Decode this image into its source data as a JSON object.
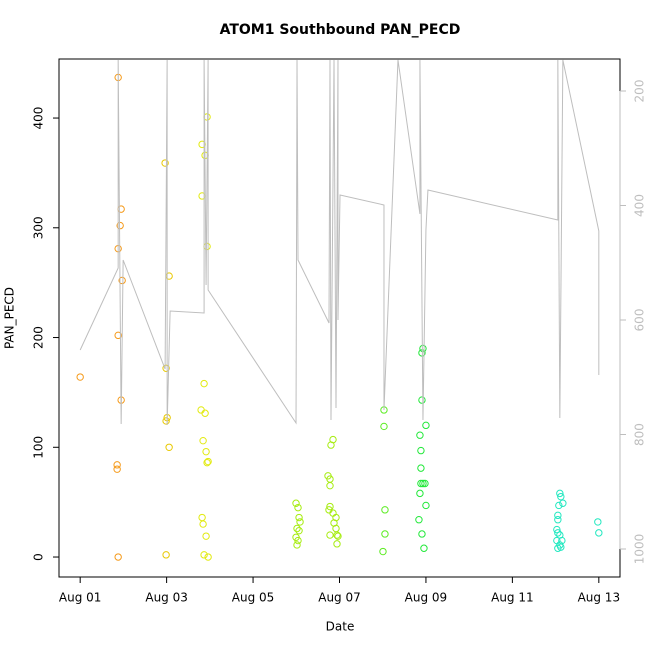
{
  "chart_data": {
    "type": "scatter",
    "title": "ATOM1 Southbound PAN_PECD",
    "xlabel": "Date",
    "ylabel": "PAN_PECD",
    "xlim": [
      -0.49,
      12.49
    ],
    "ylim": [
      -18.2,
      453.8
    ],
    "y2lim": [
      1048.9,
      144.1
    ],
    "xticks": [
      {
        "value": 0,
        "label": "Aug 01"
      },
      {
        "value": 2,
        "label": "Aug 03"
      },
      {
        "value": 4,
        "label": "Aug 05"
      },
      {
        "value": 6,
        "label": "Aug 07"
      },
      {
        "value": 8,
        "label": "Aug 09"
      },
      {
        "value": 10,
        "label": "Aug 11"
      },
      {
        "value": 12,
        "label": "Aug 13"
      }
    ],
    "yticks": [
      0,
      100,
      200,
      300,
      400
    ],
    "y2ticks": [
      200,
      400,
      600,
      800,
      1000
    ],
    "series": [
      {
        "color": "#f59a1a",
        "x": [
          0,
          0.879,
          0.948,
          0.925,
          0.879,
          0.971,
          0.879,
          0.948,
          0.855,
          0.855,
          0.879
        ],
        "values": [
          164,
          437,
          317,
          302,
          281,
          252,
          202,
          143,
          84,
          80,
          0
        ]
      },
      {
        "color": "#e8c800",
        "x": [
          1.965,
          2.058,
          1.988,
          2.012,
          1.988,
          2.058,
          1.988
        ],
        "values": [
          359,
          256,
          172,
          127,
          124,
          100,
          2
        ]
      },
      {
        "color": "#e2ea10",
        "x": [
          2.936,
          2.821,
          2.89,
          2.821,
          2.936,
          2.867,
          2.798,
          2.89,
          2.844,
          2.913,
          2.96,
          2.936,
          2.821,
          2.844,
          2.913,
          2.867,
          2.96
        ],
        "values": [
          401,
          376,
          366,
          329,
          283,
          158,
          134,
          131,
          106,
          96,
          87,
          86,
          36,
          30,
          19,
          2,
          0
        ]
      },
      {
        "color": "#a6ec10",
        "x": [
          4.994,
          5.04,
          5.064,
          5.087,
          5.017,
          5.064,
          4.994,
          5.04,
          5.017,
          5.734,
          5.78,
          5.85,
          5.803,
          5.78,
          5.78,
          5.757,
          5.85,
          5.919,
          5.873,
          5.919,
          5.78,
          5.942,
          5.965,
          5.942
        ],
        "values": [
          49,
          45,
          36,
          32,
          26,
          24,
          18,
          15,
          11,
          74,
          71,
          107,
          102,
          65,
          46,
          43,
          40,
          36,
          31,
          26,
          20,
          20,
          19,
          12
        ]
      },
      {
        "color": "#5cec22",
        "x": [
          7.029,
          7.029,
          7.052,
          7.052,
          7.006
        ],
        "values": [
          134,
          119,
          43,
          21,
          5
        ]
      },
      {
        "color": "#22e83a",
        "x": [
          7.931,
          7.908,
          8.0,
          7.908,
          7.861,
          7.884,
          7.884,
          7.884,
          7.977,
          7.931,
          7.861,
          8.0,
          7.838,
          7.908,
          7.954
        ],
        "values": [
          190,
          186,
          120,
          143,
          111,
          97,
          81,
          67,
          67,
          67,
          58,
          47,
          34,
          21,
          8
        ]
      },
      {
        "color": "#22e8c0",
        "x": [
          11.098,
          11.121,
          11.168,
          11.075,
          11.052,
          11.052,
          11.029,
          11.052,
          11.098,
          11.145,
          11.029,
          11.098,
          11.121,
          11.052,
          11.977,
          12.0
        ],
        "values": [
          58,
          55,
          49,
          47,
          38,
          34,
          25,
          22,
          20,
          15,
          15,
          11,
          9,
          8,
          32,
          22
        ]
      },
      {
        "type": "line",
        "axis": "y2",
        "color": "#bebebe",
        "x": [
          0,
          0.879,
          0.879,
          0.948,
          0.994,
          1.965,
          2.012,
          2.012,
          2.081,
          2.867,
          2.867,
          2.913,
          2.96,
          2.96,
          4.994,
          5.017,
          5.04,
          5.757,
          5.78,
          5.803,
          5.873,
          5.919,
          5.965,
          5.965,
          6.012,
          7.029,
          7.029,
          7.353,
          7.861,
          7.861,
          7.931,
          8.0,
          8.046,
          11.052,
          11.052,
          11.098,
          11.168,
          12.0,
          12.0
        ],
        "values": [
          652.4,
          509.2,
          145.8,
          781.6,
          495.2,
          685.6,
          145.8,
          783.4,
          584.3,
          587.8,
          145.8,
          538.9,
          145.8,
          547.6,
          779.9,
          145.8,
          495.2,
          605.2,
          145.8,
          774.7,
          145.8,
          753.7,
          145.8,
          600.0,
          381.7,
          399.1,
          757.2,
          145.8,
          414.8,
          145.8,
          774.7,
          442.8,
          372.9,
          425.3,
          145.8,
          771.2,
          145.8,
          444.5,
          696.1
        ]
      }
    ]
  }
}
